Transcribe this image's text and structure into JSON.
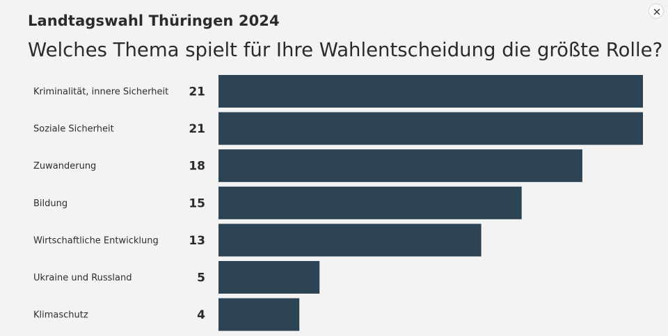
{
  "header": {
    "supertitle": "Landtagswahl Thüringen 2024",
    "title": "Welches Thema spielt für Ihre Wahlentscheidung die größte Rolle?"
  },
  "close_button": {
    "icon": "close-icon",
    "label": "×"
  },
  "colors": {
    "bar": "#2c4354",
    "background": "#f3f3f3"
  },
  "chart_data": {
    "type": "bar",
    "orientation": "horizontal",
    "categories": [
      "Kriminalität, innere Sicherheit",
      "Soziale Sicherheit",
      "Zuwanderung",
      "Bildung",
      "Wirtschaftliche Entwicklung",
      "Ukraine und Russland",
      "Klimaschutz"
    ],
    "values": [
      21,
      21,
      18,
      15,
      13,
      5,
      4
    ],
    "title": "Welches Thema spielt für Ihre Wahlentscheidung die größte Rolle?",
    "xlim": [
      0,
      21
    ],
    "grid": false,
    "legend": "none"
  }
}
